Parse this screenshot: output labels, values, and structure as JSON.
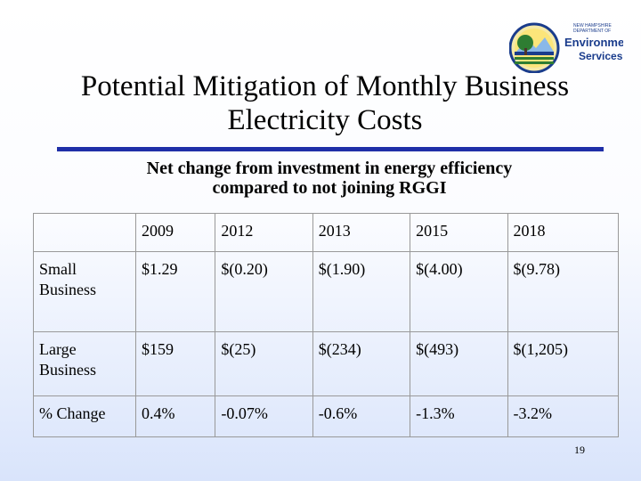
{
  "slide": {
    "title": "Potential Mitigation of Monthly Business Electricity Costs",
    "subtitle": "Net change from investment in energy efficiency compared to not joining RGGI",
    "page_number": "19"
  },
  "logo": {
    "line1": "NEW HAMPSHIRE",
    "line2": "DEPARTMENT OF",
    "line3": "Environmental",
    "line4": "Services"
  },
  "table": {
    "years": [
      "2009",
      "2012",
      "2013",
      "2015",
      "2018"
    ],
    "rows": [
      {
        "label": " Small Business",
        "values": [
          "$1.29",
          "$(0.20)",
          "$(1.90)",
          "$(4.00)",
          "$(9.78)"
        ]
      },
      {
        "label": "Large Business",
        "values": [
          "$159",
          "$(25)",
          "$(234)",
          "$(493)",
          "$(1,205)"
        ]
      },
      {
        "label": "% Change",
        "values": [
          "0.4%",
          "-0.07%",
          "-0.6%",
          "-1.3%",
          "-3.2%"
        ]
      }
    ]
  },
  "colors": {
    "accent_rule": "#1f2fa8",
    "logo_blue": "#1a3c8c",
    "logo_green": "#2e7d32",
    "logo_yellow": "#f2c200"
  }
}
